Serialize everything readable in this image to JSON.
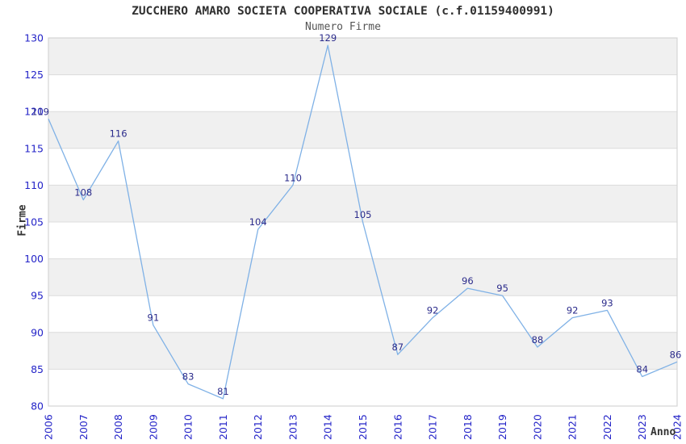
{
  "chart_data": {
    "type": "line",
    "title": "ZUCCHERO AMARO SOCIETA COOPERATIVA SOCIALE (c.f.01159400991)",
    "subtitle": "Numero Firme",
    "xlabel": "Anno",
    "ylabel": "Firme",
    "categories": [
      "2006",
      "2007",
      "2008",
      "2009",
      "2010",
      "2011",
      "2012",
      "2013",
      "2014",
      "2015",
      "2016",
      "2017",
      "2018",
      "2019",
      "2020",
      "2021",
      "2022",
      "2023",
      "2024"
    ],
    "values": [
      119,
      108,
      116,
      91,
      83,
      81,
      104,
      110,
      129,
      105,
      87,
      92,
      96,
      95,
      88,
      92,
      93,
      84,
      86
    ],
    "ylim": [
      80,
      130
    ],
    "ytick_step": 5,
    "grid": "horizontal-only",
    "legend": "none",
    "band_fill": "alternating",
    "colors": {
      "line": "#7fb1e6",
      "data_label": "#2b2b8b",
      "tick_label": "#2424c8",
      "band": "#f0f0f0",
      "gridline": "#dcdcdc",
      "border": "#d4d4d4",
      "title": "#303030",
      "subtitle": "#555555",
      "axis_title": "#333333",
      "background": "#ffffff"
    }
  }
}
